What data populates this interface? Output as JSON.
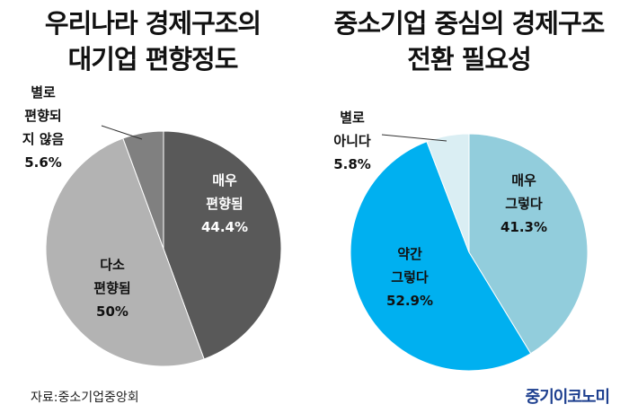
{
  "chart_data": [
    {
      "type": "pie",
      "title_lines": [
        "우리나라 경제구조의",
        "대기업 편향정도"
      ],
      "slices": [
        {
          "label_lines": [
            "매우",
            "편향됨"
          ],
          "value": 44.4,
          "value_label": "44.4%",
          "color": "#595959"
        },
        {
          "label_lines": [
            "다소",
            "편향됨"
          ],
          "value": 50,
          "value_label": "50%",
          "color": "#b3b3b3"
        },
        {
          "label_lines": [
            "별로",
            "편향되",
            "지 않음"
          ],
          "value": 5.6,
          "value_label": "5.6%",
          "color": "#808080"
        }
      ]
    },
    {
      "type": "pie",
      "title_lines": [
        "중소기업 중심의 경제구조",
        "전환 필요성"
      ],
      "slices": [
        {
          "label_lines": [
            "매우",
            "그렇다"
          ],
          "value": 41.3,
          "value_label": "41.3%",
          "color": "#92cddc"
        },
        {
          "label_lines": [
            "약간",
            "그렇다"
          ],
          "value": 52.9,
          "value_label": "52.9%",
          "color": "#00b0f0"
        },
        {
          "label_lines": [
            "별로",
            "아니다"
          ],
          "value": 5.8,
          "value_label": "5.8%",
          "color": "#daeef3"
        }
      ]
    }
  ],
  "footer": {
    "source": "자료:중소기업중앙회",
    "brand": "중기이코노미"
  }
}
